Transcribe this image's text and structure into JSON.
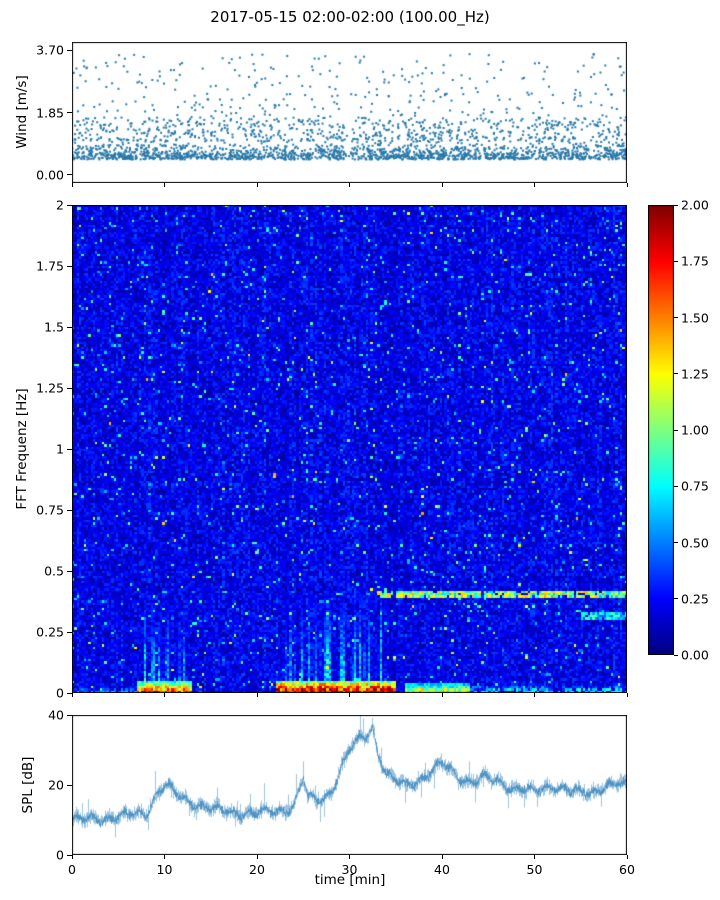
{
  "title": "2017-05-15 02:00-02:00 (100.00_Hz)",
  "chart_data": [
    {
      "type": "scatter",
      "name": "wind-speed",
      "ylabel": "Wind [m/s]",
      "yticks": [
        "3.70",
        "1.85",
        "0.00"
      ],
      "ytick_values": [
        3.7,
        1.85,
        0.0
      ],
      "ylim": [
        0,
        3.7
      ],
      "xlim": [
        0,
        60
      ],
      "marker_color": "#2878a8",
      "n_points": 2600,
      "seed": 42,
      "description": "dense scatter of wind speed vs time; most points between 0.4 and 1.5 m/s, sparser tail up to 3.7 m/s, brief gap near t=30 min"
    },
    {
      "type": "heatmap",
      "name": "spectrogram",
      "ylabel": "FFT Frequenz [Hz]",
      "yticks": [
        "2",
        "1.75",
        "1.5",
        "1.25",
        "1",
        "0.75",
        "0.5",
        "0.25",
        "0"
      ],
      "ytick_values": [
        2,
        1.75,
        1.5,
        1.25,
        1,
        0.75,
        0.5,
        0.25,
        0
      ],
      "ylim": [
        0,
        2
      ],
      "xlim": [
        0,
        60
      ],
      "colormap": "jet",
      "clim": [
        0,
        2
      ],
      "background_level": [
        0.06,
        0.36
      ],
      "seed": 7,
      "features": [
        {
          "kind": "bottom-band",
          "freq": [
            0,
            0.02
          ],
          "time": [
            0,
            7
          ],
          "level": 0.6,
          "intermittent": true
        },
        {
          "kind": "bottom-band",
          "freq": [
            0,
            0.045
          ],
          "time": [
            7,
            13
          ],
          "level": 1.7
        },
        {
          "kind": "bottom-band",
          "freq": [
            0,
            0.05
          ],
          "time": [
            22,
            35
          ],
          "level": 2.0
        },
        {
          "kind": "bottom-band",
          "freq": [
            0,
            0.035
          ],
          "time": [
            36,
            43
          ],
          "level": 1.3
        },
        {
          "kind": "bottom-band",
          "freq": [
            0,
            0.025
          ],
          "time": [
            43,
            60
          ],
          "level": 0.9,
          "intermittent": true
        },
        {
          "kind": "vertical-streaks",
          "freq": [
            0,
            0.38
          ],
          "time": [
            7.5,
            12.5
          ],
          "level": 1.0
        },
        {
          "kind": "vertical-streaks",
          "freq": [
            0,
            0.42
          ],
          "time": [
            22.5,
            34
          ],
          "level": 1.1
        },
        {
          "kind": "horizontal-line",
          "freq": [
            0.385,
            0.415
          ],
          "time": [
            33,
            60
          ],
          "level": 1.35
        },
        {
          "kind": "horizontal-line",
          "freq": [
            0.3,
            0.33
          ],
          "time": [
            55,
            60
          ],
          "level": 0.9
        }
      ],
      "description": "mostly dark/medium blue noise 0.05-0.35; strong red/dark-red band at lowest frequencies for t=8-13 and t=23-35; green/cyan vertical streaks below 0.4 Hz in those intervals; thin orange line near 0.4 Hz for t>33"
    },
    {
      "type": "line",
      "name": "spl",
      "ylabel": "SPL [dB]",
      "xlabel": "time [min]",
      "yticks": [
        "40",
        "20",
        "0"
      ],
      "ytick_values": [
        40,
        20,
        0
      ],
      "ylim": [
        0,
        40
      ],
      "xlim": [
        0,
        60
      ],
      "xticks": [
        "0",
        "10",
        "20",
        "30",
        "40",
        "50",
        "60"
      ],
      "xtick_values": [
        0,
        10,
        20,
        30,
        40,
        50,
        60
      ],
      "line_color": "#4f94c4",
      "noise_amplitude": 4,
      "seed": 11,
      "envelope": [
        [
          0,
          10
        ],
        [
          3,
          10.5
        ],
        [
          5,
          11
        ],
        [
          8,
          12
        ],
        [
          9,
          17
        ],
        [
          10,
          20
        ],
        [
          11,
          18
        ],
        [
          12,
          16
        ],
        [
          14,
          14
        ],
        [
          15,
          13
        ],
        [
          18,
          12
        ],
        [
          20,
          12
        ],
        [
          22,
          12.5
        ],
        [
          23,
          13
        ],
        [
          24,
          14
        ],
        [
          25,
          22
        ],
        [
          25.5,
          16
        ],
        [
          27,
          16
        ],
        [
          28,
          18
        ],
        [
          29,
          24
        ],
        [
          30,
          30
        ],
        [
          31,
          33
        ],
        [
          32,
          35
        ],
        [
          32.5,
          37
        ],
        [
          33,
          30
        ],
        [
          34,
          23
        ],
        [
          35,
          21
        ],
        [
          36,
          20
        ],
        [
          38,
          22
        ],
        [
          39,
          24
        ],
        [
          40,
          26
        ],
        [
          41,
          24
        ],
        [
          42,
          22
        ],
        [
          43,
          21
        ],
        [
          45,
          22
        ],
        [
          46,
          21
        ],
        [
          48,
          19
        ],
        [
          50,
          18
        ],
        [
          52,
          20
        ],
        [
          54,
          18
        ],
        [
          56,
          18
        ],
        [
          58,
          20
        ],
        [
          60,
          20
        ]
      ]
    }
  ],
  "colorbar": {
    "ticks": [
      "2.00",
      "1.75",
      "1.50",
      "1.25",
      "1.00",
      "0.75",
      "0.50",
      "0.25",
      "0.00"
    ],
    "tick_values": [
      2.0,
      1.75,
      1.5,
      1.25,
      1.0,
      0.75,
      0.5,
      0.25,
      0.0
    ],
    "lim": [
      0,
      2
    ],
    "colormap": "jet"
  }
}
